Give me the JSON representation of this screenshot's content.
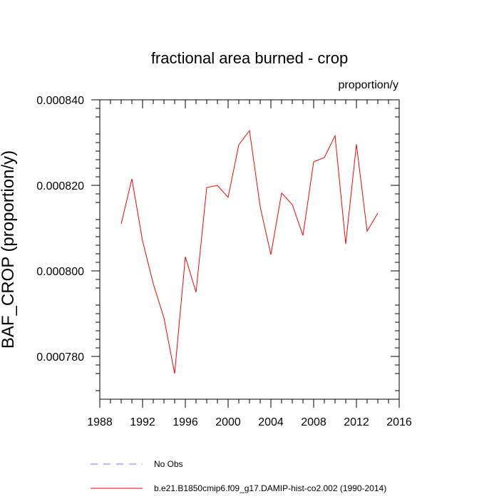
{
  "chart_data": {
    "type": "line",
    "title": "fractional area burned - crop",
    "units": "proportion/y",
    "xlabel": "",
    "ylabel": "BAF_CROP  (proportion/y)",
    "xlim": [
      1988,
      2016
    ],
    "ylim": [
      0.00077,
      0.00084
    ],
    "xticks": [
      1988,
      1992,
      1996,
      2000,
      2004,
      2008,
      2012,
      2016
    ],
    "yticks": [
      0.00078,
      0.0008,
      0.00082,
      0.00084
    ],
    "ytick_labels": [
      "0.000780",
      "0.000800",
      "0.000820",
      "0.000840"
    ],
    "grid": false,
    "legend_position": "bottom",
    "series": [
      {
        "name": "No Obs",
        "color": "#7777ee",
        "dash": "dashed",
        "x": [],
        "values": []
      },
      {
        "name": "b.e21.B1850cmip6.f09_g17.DAMIP-hist-co2.002 (1990-2014)",
        "color": "#ff0000",
        "dash": "solid",
        "x": [
          1990,
          1991,
          1992,
          1993,
          1994,
          1995,
          1996,
          1997,
          1998,
          1999,
          2000,
          2001,
          2002,
          2003,
          2004,
          2005,
          2006,
          2007,
          2008,
          2009,
          2010,
          2011,
          2012,
          2013,
          2014
        ],
        "values": [
          0.000811,
          0.0008215,
          0.000807,
          0.000797,
          0.000789,
          0.000776,
          0.0008033,
          0.000795,
          0.0008195,
          0.00082,
          0.0008172,
          0.0008295,
          0.0008328,
          0.000815,
          0.0008038,
          0.0008182,
          0.0008155,
          0.0008083,
          0.0008255,
          0.0008265,
          0.0008316,
          0.0008063,
          0.0008296,
          0.0008093,
          0.0008135
        ]
      }
    ]
  }
}
